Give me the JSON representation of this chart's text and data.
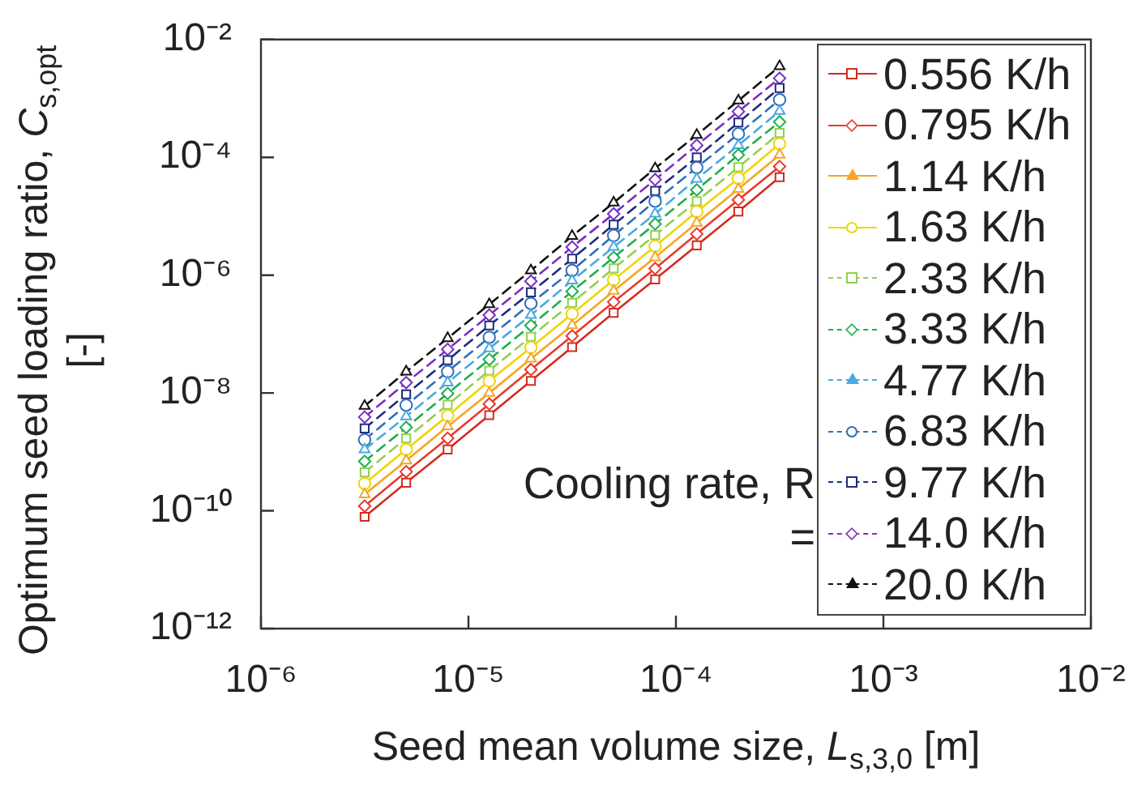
{
  "chart_data": {
    "type": "line",
    "xlabel": "Seed mean volume size, L$_{s,3,0}$ [m]",
    "ylabel": "Optimum seed loading ratio, C$_{s,opt}$ [-]",
    "log": "xy",
    "x": [
      3.16e-06,
      5.01e-06,
      7.94e-06,
      1.26e-05,
      2e-05,
      3.16e-05,
      5.01e-05,
      7.94e-05,
      0.000126,
      0.0002,
      0.000316
    ],
    "xlim": [
      1e-06,
      0.01
    ],
    "ylim": [
      1e-12,
      0.01
    ],
    "xticks": [
      {
        "value": 1e-06,
        "label": "10⁻⁶"
      },
      {
        "value": 1e-05,
        "label": "10⁻⁵"
      },
      {
        "value": 0.0001,
        "label": "10⁻⁴"
      },
      {
        "value": 0.001,
        "label": "10⁻³"
      },
      {
        "value": 0.01,
        "label": "10⁻²"
      }
    ],
    "yticks": [
      {
        "value": 1e-12,
        "label": "10⁻¹²"
      },
      {
        "value": 1e-10,
        "label": "10⁻¹⁰"
      },
      {
        "value": 1e-08,
        "label": "10⁻⁸"
      },
      {
        "value": 1e-06,
        "label": "10⁻⁶"
      },
      {
        "value": 0.0001,
        "label": "10⁻⁴"
      },
      {
        "value": 0.01,
        "label": "10⁻²"
      }
    ],
    "legend": "top right",
    "annotations": [
      "Cooling rate, R ="
    ],
    "series": [
      {
        "name": "0.556 K/h",
        "color": "#d42a20",
        "marker": "square",
        "line_style": "solid",
        "values": [
          7.9e-11,
          3e-10,
          1.1e-09,
          4.2e-09,
          1.6e-08,
          6e-08,
          2.3e-07,
          8.5e-07,
          3.2e-06,
          1.2e-05,
          4.6e-05
        ]
      },
      {
        "name": "0.795 K/h",
        "color": "#e8392c",
        "marker": "diamond",
        "line_style": "solid",
        "values": [
          1.2e-10,
          4.6e-10,
          1.7e-09,
          6.5e-09,
          2.5e-08,
          9.3e-08,
          3.5e-07,
          1.3e-06,
          5e-06,
          1.9e-05,
          7e-05
        ]
      },
      {
        "name": "1.14 K/h",
        "color": "#f5a623",
        "marker": "triangle",
        "line_style": "solid",
        "values": [
          1.9e-10,
          7.1e-10,
          2.7e-09,
          1e-08,
          3.8e-08,
          1.4e-07,
          5.4e-07,
          2e-06,
          7.7e-06,
          2.9e-05,
          0.00011
        ]
      },
      {
        "name": "1.63 K/h",
        "color": "#f0d400",
        "marker": "circle",
        "line_style": "solid",
        "values": [
          2.9e-10,
          1.1e-09,
          4.1e-09,
          1.6e-08,
          5.9e-08,
          2.2e-07,
          8.3e-07,
          3.1e-06,
          1.2e-05,
          4.4e-05,
          0.00017
        ]
      },
      {
        "name": "2.33 K/h",
        "color": "#92d050",
        "marker": "square",
        "line_style": "dashed",
        "values": [
          4.5e-10,
          1.7e-09,
          6.3e-09,
          2.4e-08,
          9e-08,
          3.4e-07,
          1.3e-06,
          4.8e-06,
          1.8e-05,
          6.8e-05,
          0.00026
        ]
      },
      {
        "name": "3.33 K/h",
        "color": "#1fae4b",
        "marker": "diamond",
        "line_style": "dashed",
        "values": [
          6.9e-10,
          2.6e-09,
          9.8e-09,
          3.7e-08,
          1.4e-07,
          5.3e-07,
          2e-06,
          7.4e-06,
          2.8e-05,
          0.00011,
          0.0004
        ]
      },
      {
        "name": "4.77 K/h",
        "color": "#4aa9e0",
        "marker": "triangle",
        "line_style": "dashed",
        "values": [
          1.1e-09,
          4e-09,
          1.5e-08,
          5.7e-08,
          2.1e-07,
          8.1e-07,
          3e-06,
          1.1e-05,
          4.3e-05,
          0.00016,
          0.00061
        ]
      },
      {
        "name": "6.83 K/h",
        "color": "#2f6fb8",
        "marker": "circle",
        "line_style": "dashed",
        "values": [
          1.6e-09,
          6.2e-09,
          2.3e-08,
          8.8e-08,
          3.3e-07,
          1.2e-06,
          4.7e-06,
          1.8e-05,
          6.7e-05,
          0.00025,
          0.00095
        ]
      },
      {
        "name": "9.77 K/h",
        "color": "#1f2d7c",
        "marker": "square",
        "line_style": "dashed",
        "values": [
          2.5e-09,
          9.5e-09,
          3.6e-08,
          1.4e-07,
          5.1e-07,
          1.9e-06,
          7.2e-06,
          2.7e-05,
          0.0001,
          0.00039,
          0.0015
        ]
      },
      {
        "name": "14.0 K/h",
        "color": "#7b2fc2",
        "marker": "diamond",
        "line_style": "dashed",
        "values": [
          3.9e-09,
          1.5e-08,
          5.5e-08,
          2.1e-07,
          7.9e-07,
          3e-06,
          1.1e-05,
          4.2e-05,
          0.00016,
          0.0006,
          0.0022
        ]
      },
      {
        "name": "20.0 K/h",
        "color": "#111111",
        "marker": "triangle",
        "line_style": "dashed",
        "values": [
          6e-09,
          2.3e-08,
          8.5e-08,
          3.2e-07,
          1.2e-06,
          4.6e-06,
          1.7e-05,
          6.5e-05,
          0.00024,
          0.00092,
          0.0035
        ]
      }
    ]
  }
}
